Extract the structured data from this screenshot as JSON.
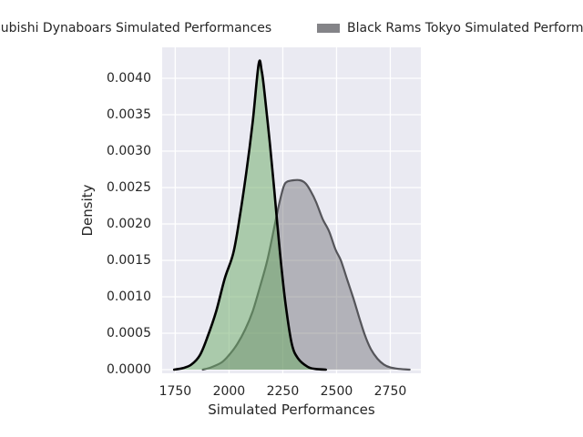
{
  "figure": {
    "background": "#ffffff",
    "plot_background": "#eaeaf2",
    "grid_color": "#ffffff",
    "text_color": "#262626"
  },
  "legend": {
    "position": "top",
    "items": [
      {
        "label": "Mitsubishi Dynaboars Simulated Performances",
        "swatch_color": "#69aa64"
      },
      {
        "label": "Black Rams Tokyo Simulated Performances",
        "swatch_color": "#848488"
      }
    ]
  },
  "chart_data": {
    "type": "area",
    "subtype": "kde-density",
    "title": "",
    "xlabel": "Simulated Performances",
    "ylabel": "Density",
    "x_ticks": [
      1750,
      2000,
      2250,
      2500,
      2750
    ],
    "y_ticks": [
      0.0,
      0.0005,
      0.001,
      0.0015,
      0.002,
      0.0025,
      0.003,
      0.0035,
      0.004
    ],
    "y_tick_labels": [
      "0.0000",
      "0.0005",
      "0.0010",
      "0.0015",
      "0.0020",
      "0.0025",
      "0.0030",
      "0.0035",
      "0.0040"
    ],
    "xlim": [
      1689,
      2892
    ],
    "ylim": [
      -5e-05,
      0.004425
    ],
    "grid": true,
    "legend_position": "top",
    "series": [
      {
        "name": "Mitsubishi Dynaboars Simulated Performances",
        "line_color": "#000000",
        "line_width": 2.6,
        "fill_color": "rgba(105,170,100,0.5)",
        "peak": {
          "x": 2138,
          "density": 0.0042
        },
        "points": [
          [
            1745,
            0
          ],
          [
            1785,
            2e-05
          ],
          [
            1825,
            7e-05
          ],
          [
            1865,
            0.0002
          ],
          [
            1900,
            0.00045
          ],
          [
            1940,
            0.0008
          ],
          [
            1980,
            0.00125
          ],
          [
            2020,
            0.0016
          ],
          [
            2050,
            0.0021
          ],
          [
            2080,
            0.0027
          ],
          [
            2110,
            0.0034
          ],
          [
            2138,
            0.0042
          ],
          [
            2152,
            0.0041
          ],
          [
            2165,
            0.0038
          ],
          [
            2190,
            0.0031
          ],
          [
            2210,
            0.00248
          ],
          [
            2237,
            0.0016
          ],
          [
            2263,
            0.0009
          ],
          [
            2292,
            0.00035
          ],
          [
            2322,
            0.00015
          ],
          [
            2365,
            4e-05
          ],
          [
            2400,
            1e-05
          ],
          [
            2450,
            0
          ]
        ]
      },
      {
        "name": "Black Rams Tokyo Simulated Performances",
        "line_color": "#55555a",
        "line_width": 2.2,
        "fill_color": "rgba(110,110,115,0.45)",
        "peak": {
          "x": 2300,
          "density": 0.0026
        },
        "points": [
          [
            1878,
            0
          ],
          [
            1915,
            3e-05
          ],
          [
            1966,
            0.0001
          ],
          [
            2000,
            0.0002
          ],
          [
            2038,
            0.00035
          ],
          [
            2075,
            0.00055
          ],
          [
            2110,
            0.0008
          ],
          [
            2145,
            0.00115
          ],
          [
            2178,
            0.0015
          ],
          [
            2210,
            0.00195
          ],
          [
            2235,
            0.0023
          ],
          [
            2255,
            0.00252
          ],
          [
            2270,
            0.00258
          ],
          [
            2300,
            0.0026
          ],
          [
            2330,
            0.0026
          ],
          [
            2355,
            0.00256
          ],
          [
            2380,
            0.00245
          ],
          [
            2405,
            0.0023
          ],
          [
            2435,
            0.00207
          ],
          [
            2465,
            0.0019
          ],
          [
            2495,
            0.00165
          ],
          [
            2520,
            0.0015
          ],
          [
            2550,
            0.00123
          ],
          [
            2576,
            0.001
          ],
          [
            2605,
            0.00072
          ],
          [
            2631,
            0.00048
          ],
          [
            2660,
            0.00028
          ],
          [
            2690,
            0.00015
          ],
          [
            2720,
            7e-05
          ],
          [
            2750,
            3e-05
          ],
          [
            2790,
            1e-05
          ],
          [
            2840,
            0
          ]
        ]
      }
    ]
  }
}
